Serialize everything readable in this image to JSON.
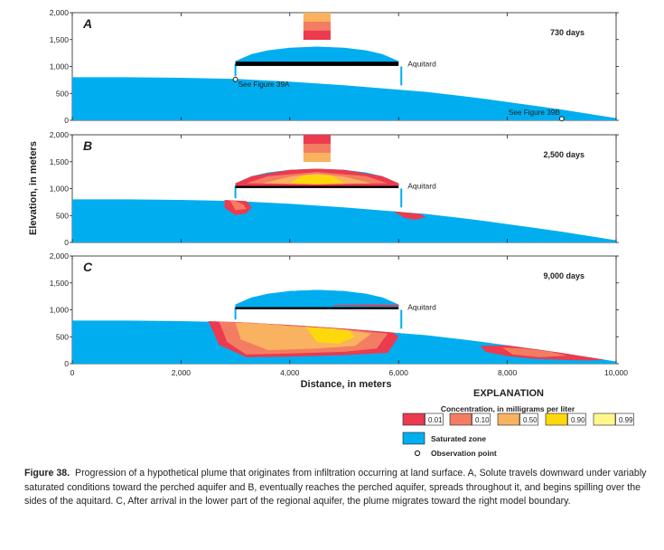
{
  "colors": {
    "saturated": "#00aeef",
    "aquitard": "#000000",
    "conc_001": "#ec3a4f",
    "conc_010": "#f37d62",
    "conc_050": "#f9b25f",
    "conc_090": "#fdd80c",
    "conc_099": "#fff78a"
  },
  "chart_data": {
    "type": "area",
    "ylabel": "Elevation, in meters",
    "xlabel": "Distance, in meters",
    "xlim": [
      0,
      10000
    ],
    "ylim": [
      0,
      2000
    ],
    "x_ticks": [
      0,
      2000,
      4000,
      6000,
      8000,
      10000
    ],
    "x_tick_labels": [
      "0",
      "2,000",
      "4,000",
      "6,000",
      "8,000",
      "10,000"
    ],
    "y_ticks": [
      0,
      500,
      1000,
      1500,
      2000
    ],
    "y_tick_labels": [
      "0",
      "500",
      "1,000",
      "1,500",
      "2,000"
    ],
    "aquitard": {
      "label": "Aquitard",
      "x": [
        3000,
        6000
      ],
      "elevation": 1050
    },
    "perched_aquifer": {
      "x": [
        3000,
        3300,
        3600,
        4000,
        4500,
        5000,
        5400,
        5700,
        6000
      ],
      "y": [
        1100,
        1230,
        1300,
        1350,
        1370,
        1350,
        1300,
        1230,
        1100
      ]
    },
    "regional_aquifer_surface": {
      "x": [
        0,
        500,
        1000,
        2000,
        3000,
        4000,
        5000,
        6000,
        6500,
        7000,
        7500,
        8000,
        8500,
        9000,
        9500,
        9800,
        10000
      ],
      "y": [
        800,
        800,
        800,
        790,
        770,
        720,
        650,
        570,
        530,
        470,
        410,
        340,
        270,
        200,
        120,
        70,
        40
      ]
    },
    "panels": [
      {
        "letter": "A",
        "time_label": "730 days",
        "annotations": [
          {
            "text": "See Figure 39A",
            "x": 3000,
            "y": 760
          },
          {
            "text": "See Figure 39B",
            "x": 9000,
            "y": 30
          }
        ]
      },
      {
        "letter": "B",
        "time_label": "2,500 days",
        "annotations": []
      },
      {
        "letter": "C",
        "time_label": "9,000 days",
        "annotations": []
      }
    ]
  },
  "explanation": {
    "title": "EXPLANATION",
    "concentration_title": "Concentration, in milligrams per liter",
    "concentration_levels": [
      "0.01",
      "0.10",
      "0.50",
      "0.90",
      "0.99"
    ],
    "saturated_label": "Saturated zone",
    "observation_label": "Observation point"
  },
  "caption": {
    "figure_number": "Figure 38.",
    "text": "Progression of a hypothetical plume that originates from infiltration occurring at land surface. A, Solute travels downward under variably saturated conditions toward the perched aquifer and B, eventually reaches the perched aquifer, spreads throughout it, and begins spilling over the sides of the aquitard. C, After arrival in the lower part of the regional aquifer, the plume migrates toward the right model boundary."
  }
}
